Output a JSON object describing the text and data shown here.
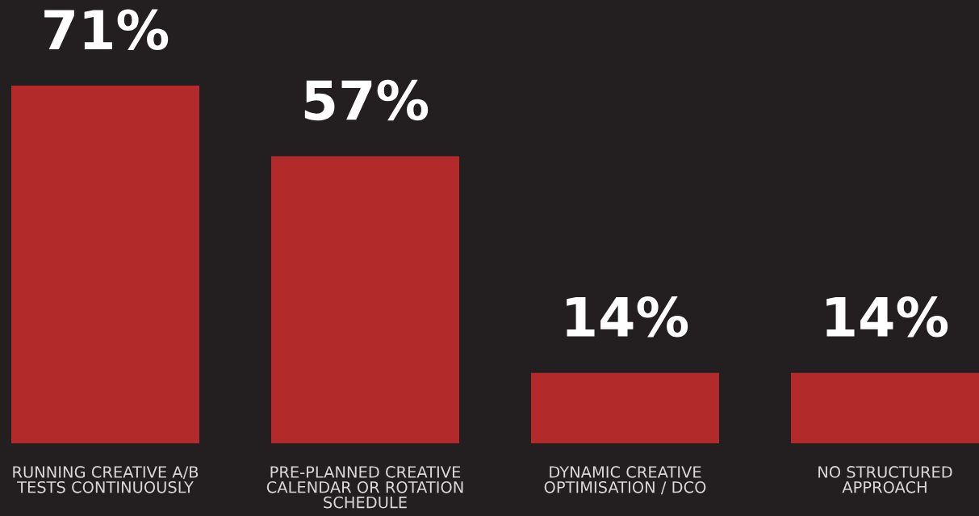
{
  "chart_data": {
    "type": "bar",
    "categories": [
      "RUNNING CREATIVE A/B\nTESTS CONTINUOUSLY",
      "PRE-PLANNED CREATIVE\nCALENDAR OR ROTATION\nSCHEDULE",
      "DYNAMIC CREATIVE\nOPTIMISATION / DCO",
      "NO STRUCTURED\nAPPROACH"
    ],
    "values": [
      71,
      57,
      14,
      14
    ],
    "value_labels": [
      "71%",
      "57%",
      "14%",
      "14%"
    ],
    "color": "#b22b2a",
    "ylim": [
      0,
      88
    ],
    "tick_labels": "x",
    "grid": false,
    "legend": false
  }
}
